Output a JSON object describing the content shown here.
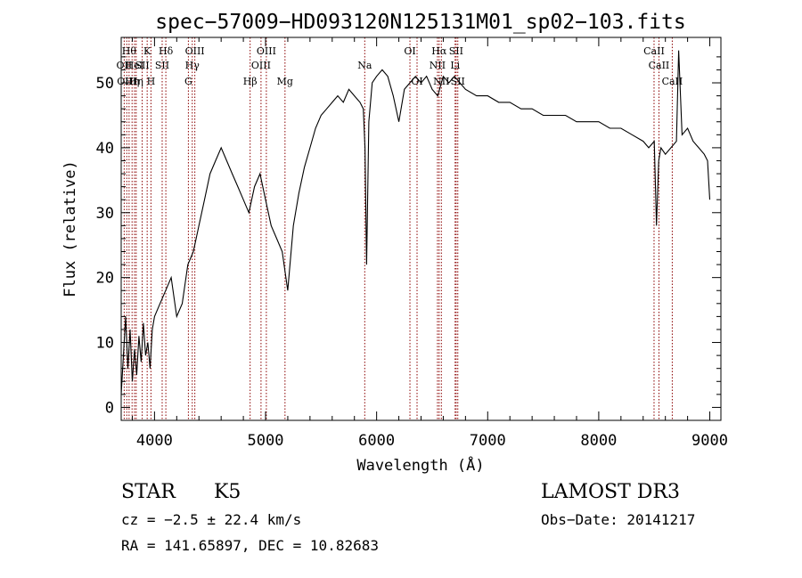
{
  "chart_data": {
    "type": "line",
    "title": "spec−57009−HD093120N125131M01_sp02−103.fits",
    "xlabel": "Wavelength (Å)",
    "ylabel": "Flux (relative)",
    "xlim": [
      3700,
      9100
    ],
    "ylim": [
      -2,
      57
    ],
    "x_ticks": [
      4000,
      5000,
      6000,
      7000,
      8000,
      9000
    ],
    "y_ticks": [
      0,
      10,
      20,
      30,
      40,
      50
    ],
    "line_color": "#000000",
    "marker_color": "#8b0000",
    "series": [
      {
        "x": [
          3700,
          3720,
          3740,
          3760,
          3780,
          3800,
          3820,
          3840,
          3860,
          3880,
          3900,
          3920,
          3940,
          3960,
          3980,
          4000,
          4050,
          4100,
          4150,
          4200,
          4250,
          4300,
          4350,
          4400,
          4450,
          4500,
          4550,
          4600,
          4650,
          4700,
          4750,
          4800,
          4850,
          4900,
          4950,
          5000,
          5050,
          5100,
          5150,
          5200,
          5250,
          5300,
          5350,
          5400,
          5450,
          5500,
          5550,
          5600,
          5650,
          5700,
          5750,
          5800,
          5850,
          5880,
          5895,
          5910,
          5930,
          5960,
          6000,
          6050,
          6100,
          6150,
          6200,
          6250,
          6300,
          6350,
          6400,
          6450,
          6500,
          6550,
          6600,
          6650,
          6700,
          6750,
          6800,
          6900,
          7000,
          7100,
          7200,
          7300,
          7400,
          7500,
          7600,
          7700,
          7800,
          7900,
          8000,
          8100,
          8200,
          8300,
          8400,
          8450,
          8500,
          8520,
          8540,
          8560,
          8600,
          8650,
          8700,
          8720,
          8750,
          8800,
          8850,
          8900,
          8950,
          8980,
          9000
        ],
        "y": [
          2,
          8,
          14,
          6,
          12,
          4,
          9,
          5,
          11,
          7,
          13,
          8,
          10,
          6,
          12,
          14,
          16,
          18,
          20,
          14,
          16,
          22,
          24,
          28,
          32,
          36,
          38,
          40,
          38,
          36,
          34,
          32,
          30,
          34,
          36,
          32,
          28,
          26,
          24,
          18,
          28,
          33,
          37,
          40,
          43,
          45,
          46,
          47,
          48,
          47,
          49,
          48,
          47,
          46,
          40,
          22,
          44,
          50,
          51,
          52,
          51,
          48,
          44,
          49,
          50,
          51,
          50,
          51,
          49,
          48,
          51,
          50,
          51,
          50,
          49,
          48,
          48,
          47,
          47,
          46,
          46,
          45,
          45,
          45,
          44,
          44,
          44,
          43,
          43,
          42,
          41,
          40,
          41,
          28,
          38,
          40,
          39,
          40,
          41,
          55,
          42,
          43,
          41,
          40,
          39,
          38,
          32
        ]
      }
    ],
    "lines": [
      {
        "x": 3727,
        "label": "OII",
        "row": 2
      },
      {
        "x": 3750,
        "label": "OIII",
        "row": 3
      },
      {
        "x": 3771,
        "label": "Hθ",
        "row": 1
      },
      {
        "x": 3798,
        "label": "Hη",
        "row": 3
      },
      {
        "x": 3820,
        "label": "HeI",
        "row": 2
      },
      {
        "x": 3835,
        "label": "Hη",
        "row": 3
      },
      {
        "x": 3889,
        "label": "SII",
        "row": 2
      },
      {
        "x": 3934,
        "label": "K",
        "row": 1
      },
      {
        "x": 3968,
        "label": "H",
        "row": 3
      },
      {
        "x": 4069,
        "label": "SII",
        "row": 2
      },
      {
        "x": 4102,
        "label": "Hδ",
        "row": 1
      },
      {
        "x": 4305,
        "label": "G",
        "row": 3
      },
      {
        "x": 4340,
        "label": "Hγ",
        "row": 2
      },
      {
        "x": 4363,
        "label": "OIII",
        "row": 1
      },
      {
        "x": 4861,
        "label": "Hβ",
        "row": 3
      },
      {
        "x": 4959,
        "label": "OIII",
        "row": 2
      },
      {
        "x": 5007,
        "label": "OIII",
        "row": 1
      },
      {
        "x": 5175,
        "label": "Mg",
        "row": 3
      },
      {
        "x": 5893,
        "label": "Na",
        "row": 2
      },
      {
        "x": 6300,
        "label": "OI",
        "row": 1
      },
      {
        "x": 6364,
        "label": "OI",
        "row": 3
      },
      {
        "x": 6548,
        "label": "NII",
        "row": 2
      },
      {
        "x": 6563,
        "label": "Hα",
        "row": 1
      },
      {
        "x": 6583,
        "label": "NII",
        "row": 3
      },
      {
        "x": 6707,
        "label": "Li",
        "row": 2
      },
      {
        "x": 6716,
        "label": "SII",
        "row": 1
      },
      {
        "x": 6731,
        "label": "SII",
        "row": 3
      },
      {
        "x": 8498,
        "label": "CaII",
        "row": 1
      },
      {
        "x": 8542,
        "label": "CaII",
        "row": 2
      },
      {
        "x": 8662,
        "label": "CaII",
        "row": 3
      }
    ]
  },
  "info": {
    "object_class": "STAR",
    "subclass": "K5",
    "release": "LAMOST DR3",
    "redshift": "cz = −2.5 ± 22.4 km/s",
    "obs_date": "Obs−Date: 20141217",
    "coords": "RA = 141.65897, DEC =  10.82683"
  }
}
